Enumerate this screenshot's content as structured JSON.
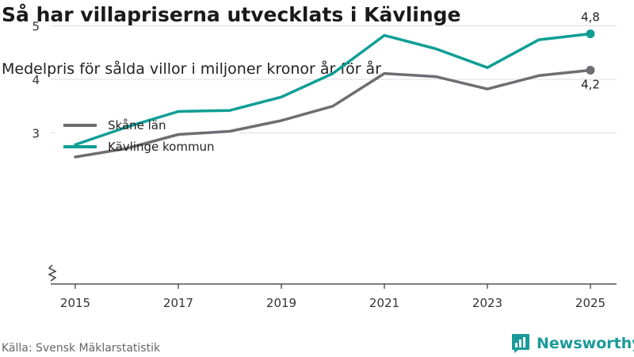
{
  "title": "Så har villapriserna utvecklats i Kävlinge",
  "subtitle": "Medelpris för sålda villor i miljoner kronor år för år",
  "source": "Källa: Svensk Mäklarstatistik",
  "brand": "Newsworthy",
  "colors": {
    "grid": "#dddddd",
    "axis": "#333333",
    "brand": "#1a9a9a"
  },
  "chart_data": {
    "type": "line",
    "title": "Så har villapriserna utvecklats i Kävlinge",
    "subtitle": "Medelpris för sålda villor i miljoner kronor år för år",
    "xlabel": "",
    "ylabel": "",
    "x": [
      2015,
      2016,
      2017,
      2018,
      2019,
      2020,
      2021,
      2022,
      2023,
      2024,
      2025
    ],
    "xticks": [
      2015,
      2017,
      2019,
      2021,
      2023,
      2025
    ],
    "xtick_labels": [
      "2015",
      "2017",
      "2019",
      "2021",
      "2023",
      "2025"
    ],
    "yticks": [
      3,
      4,
      5
    ],
    "ytick_labels": [
      "3",
      "4",
      "5"
    ],
    "ylim": [
      2.2,
      5.3
    ],
    "xlim": [
      2014.7,
      2025.1
    ],
    "legend_position": "top-left",
    "series": [
      {
        "name": "Skåne län",
        "color": "#6e6d72",
        "values": [
          2.55,
          2.71,
          2.97,
          3.03,
          3.23,
          3.5,
          4.11,
          4.05,
          3.82,
          4.07,
          4.17
        ],
        "end_label": "4,2"
      },
      {
        "name": "Kävlinge kommun",
        "color": "#0f9e94",
        "values": [
          2.78,
          3.11,
          3.4,
          3.42,
          3.67,
          4.11,
          4.82,
          4.57,
          4.22,
          4.74,
          4.85
        ],
        "end_label": "4,8"
      }
    ]
  }
}
